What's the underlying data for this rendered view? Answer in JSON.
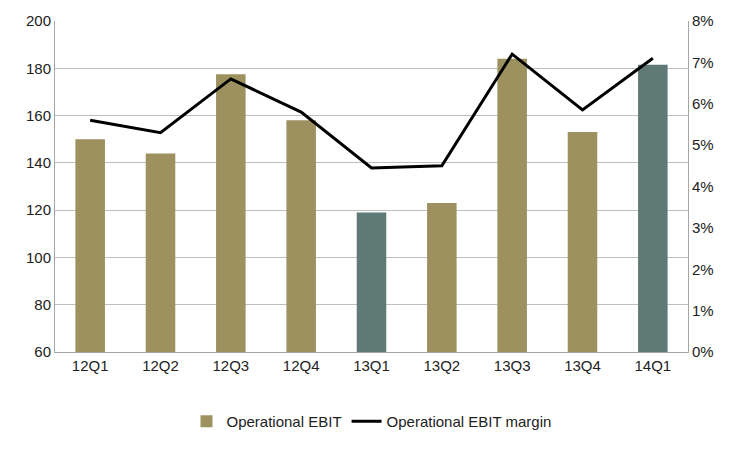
{
  "chart_data": {
    "type": "bar",
    "categories": [
      "12Q1",
      "12Q2",
      "12Q3",
      "12Q4",
      "13Q1",
      "13Q2",
      "13Q3",
      "13Q4",
      "14Q1"
    ],
    "series": [
      {
        "name": "Operational EBIT",
        "type": "bar",
        "colors": [
          "#9c915f",
          "#9c915f",
          "#9c915f",
          "#9c915f",
          "#5f7a74",
          "#9c915f",
          "#9c915f",
          "#9c915f",
          "#5f7a74"
        ],
        "values": [
          150,
          144,
          177.5,
          158,
          119,
          123,
          184,
          153,
          181.5
        ]
      },
      {
        "name": "Operational EBIT margin",
        "type": "line",
        "color": "#000000",
        "axis": "y2",
        "values": [
          5.6,
          5.3,
          6.6,
          5.8,
          4.45,
          4.5,
          7.2,
          5.85,
          7.1
        ]
      }
    ],
    "ylim": [
      60,
      200
    ],
    "yticks": [
      60,
      80,
      100,
      120,
      140,
      160,
      180,
      200
    ],
    "y2lim": [
      0,
      8
    ],
    "y2ticks": [
      {
        "value": 0,
        "label": "0%"
      },
      {
        "value": 1,
        "label": "1%"
      },
      {
        "value": 2,
        "label": "2%"
      },
      {
        "value": 3,
        "label": "3%"
      },
      {
        "value": 4,
        "label": "4%"
      },
      {
        "value": 5,
        "label": "5%"
      },
      {
        "value": 6,
        "label": "6%"
      },
      {
        "value": 7,
        "label": "7%"
      },
      {
        "value": 8,
        "label": "8%"
      }
    ],
    "grid": true,
    "legend": "bottom"
  }
}
